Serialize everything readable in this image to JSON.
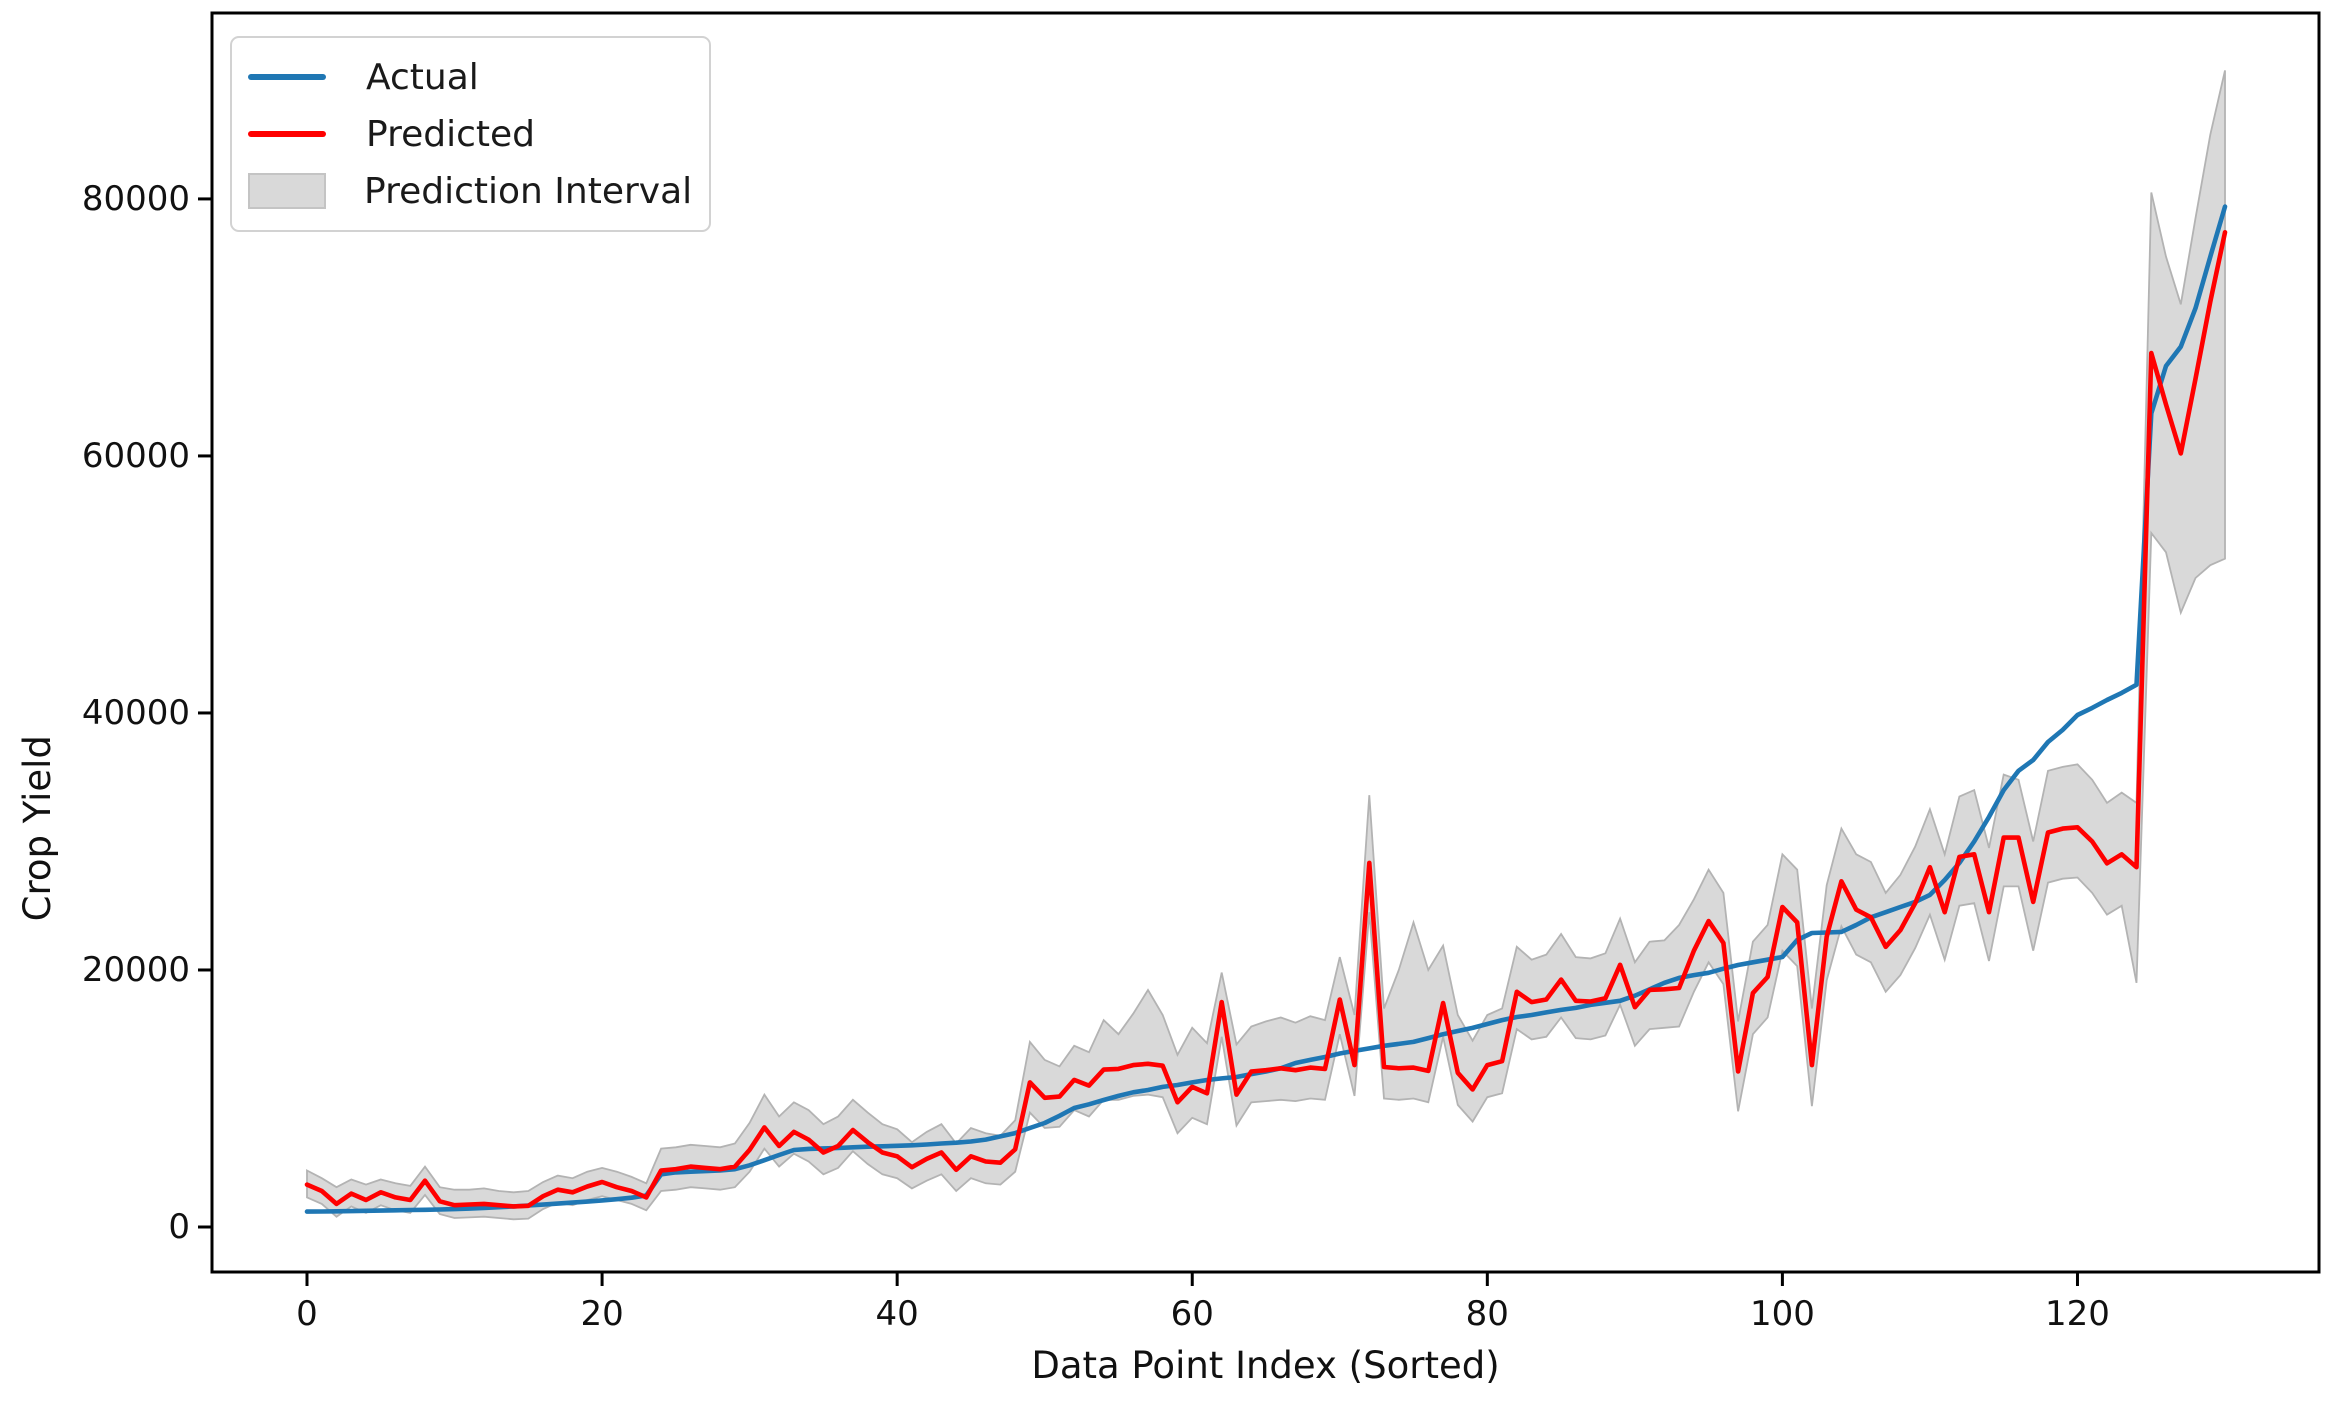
{
  "figure": {
    "xlabel": "Data Point Index (Sorted)",
    "ylabel": "Crop Yield",
    "legend": [
      {
        "label": "Actual",
        "type": "line",
        "color": "#1f77b4"
      },
      {
        "label": "Predicted",
        "type": "line",
        "color": "#ff0000"
      },
      {
        "label": "Prediction Interval",
        "type": "patch",
        "color": "#d9d9d9"
      }
    ]
  },
  "chart_data": {
    "type": "line",
    "title": "",
    "xlabel": "Data Point Index (Sorted)",
    "ylabel": "Crop Yield",
    "x_ticks": [
      0,
      20,
      40,
      60,
      80,
      100,
      120
    ],
    "y_ticks": [
      0,
      20000,
      40000,
      60000,
      80000
    ],
    "xlim": [
      -6.4,
      136.4
    ],
    "ylim": [
      -3500,
      94500
    ],
    "grid": false,
    "legend_position": "upper left",
    "x_description": "data point index 0..130, sorted by actual value",
    "series": [
      {
        "name": "Actual",
        "color": "#1f77b4",
        "values": [
          1200,
          1210,
          1220,
          1240,
          1260,
          1280,
          1300,
          1320,
          1340,
          1360,
          1390,
          1430,
          1480,
          1540,
          1600,
          1670,
          1740,
          1820,
          1900,
          1980,
          2070,
          2160,
          2280,
          2450,
          4100,
          4250,
          4300,
          4350,
          4400,
          4500,
          4800,
          5200,
          5600,
          5990,
          6080,
          6120,
          6150,
          6200,
          6250,
          6280,
          6320,
          6360,
          6420,
          6500,
          6560,
          6650,
          6800,
          7050,
          7310,
          7700,
          8090,
          8650,
          9260,
          9550,
          9880,
          10200,
          10480,
          10660,
          10900,
          11050,
          11250,
          11440,
          11560,
          11670,
          11900,
          12100,
          12350,
          12760,
          13000,
          13230,
          13500,
          13700,
          13900,
          14100,
          14250,
          14400,
          14700,
          15000,
          15250,
          15490,
          15800,
          16100,
          16340,
          16500,
          16700,
          16890,
          17050,
          17280,
          17450,
          17600,
          18000,
          18500,
          19000,
          19380,
          19600,
          19780,
          20100,
          20390,
          20600,
          20800,
          21010,
          22330,
          22880,
          22920,
          22960,
          23500,
          24100,
          24500,
          24900,
          25300,
          25840,
          27000,
          28330,
          30000,
          31910,
          34000,
          35500,
          36340,
          37740,
          38680,
          39840,
          40390,
          41010,
          41560,
          42200,
          63300,
          67000,
          68500,
          71500,
          75500,
          79400
        ]
      },
      {
        "name": "Predicted",
        "color": "#ff0000",
        "values": [
          3300,
          2800,
          1800,
          2600,
          2100,
          2700,
          2300,
          2100,
          3600,
          2000,
          1700,
          1750,
          1800,
          1700,
          1600,
          1650,
          2400,
          2900,
          2700,
          3150,
          3500,
          3100,
          2800,
          2300,
          4400,
          4500,
          4700,
          4600,
          4500,
          4700,
          6000,
          7750,
          6300,
          7400,
          6800,
          5800,
          6300,
          7550,
          6600,
          5800,
          5500,
          4650,
          5300,
          5800,
          4450,
          5500,
          5100,
          5000,
          6050,
          11250,
          10050,
          10150,
          11450,
          11000,
          12250,
          12300,
          12600,
          12700,
          12550,
          9700,
          10900,
          10400,
          17500,
          10300,
          12100,
          12200,
          12350,
          12200,
          12400,
          12300,
          17700,
          12600,
          28330,
          12450,
          12350,
          12400,
          12150,
          17430,
          12000,
          10700,
          12600,
          12900,
          18300,
          17500,
          17700,
          19250,
          17600,
          17550,
          17800,
          20400,
          17100,
          18450,
          18500,
          18600,
          21500,
          23800,
          22100,
          12100,
          18200,
          19450,
          24900,
          23700,
          12600,
          22600,
          26900,
          24700,
          24100,
          21800,
          23100,
          25200,
          28000,
          24500,
          28800,
          29000,
          24500,
          30300,
          30300,
          25300,
          30700,
          31000,
          31100,
          30000,
          28300,
          29000,
          28000,
          68000,
          64000,
          60200,
          66000,
          72000,
          77400
        ]
      },
      {
        "name": "Prediction Interval",
        "type": "band",
        "color": "#d9d9d9",
        "edge_color": "#b3b3b3",
        "upper": [
          4400,
          3800,
          3100,
          3700,
          3300,
          3700,
          3400,
          3200,
          4700,
          3100,
          2900,
          2900,
          3000,
          2800,
          2700,
          2800,
          3500,
          4000,
          3800,
          4300,
          4600,
          4300,
          3900,
          3400,
          6100,
          6200,
          6400,
          6300,
          6200,
          6500,
          8100,
          10300,
          8600,
          9700,
          9100,
          8000,
          8600,
          9900,
          8900,
          8000,
          7600,
          6600,
          7400,
          8000,
          6500,
          7700,
          7300,
          7100,
          8300,
          14400,
          13000,
          12500,
          14100,
          13600,
          16100,
          15000,
          16600,
          18440,
          16500,
          13400,
          15500,
          14300,
          19800,
          14200,
          15600,
          16000,
          16300,
          15900,
          16400,
          16100,
          21000,
          16500,
          33600,
          17000,
          20000,
          23700,
          20000,
          21900,
          16500,
          14500,
          16500,
          17000,
          21800,
          20800,
          21200,
          22800,
          21000,
          20900,
          21300,
          24000,
          20600,
          22200,
          22300,
          23500,
          25500,
          27800,
          26000,
          16000,
          22200,
          23500,
          29000,
          27800,
          17000,
          26600,
          31000,
          29000,
          28400,
          26000,
          27400,
          29600,
          32500,
          29000,
          33500,
          34000,
          29500,
          35200,
          34800,
          30000,
          35500,
          35800,
          36000,
          34800,
          33000,
          33800,
          33000,
          80500,
          75500,
          71800,
          78500,
          85000,
          90000
        ],
        "lower": [
          2300,
          1800,
          800,
          1600,
          1100,
          1700,
          1300,
          1100,
          2500,
          1000,
          700,
          750,
          800,
          700,
          600,
          650,
          1400,
          1900,
          1700,
          2100,
          2400,
          2100,
          1800,
          1300,
          2800,
          2900,
          3100,
          3000,
          2900,
          3100,
          4300,
          6100,
          4700,
          5700,
          5100,
          4100,
          4600,
          5900,
          4900,
          4100,
          3800,
          3000,
          3600,
          4100,
          2800,
          3800,
          3400,
          3300,
          4300,
          8900,
          7700,
          7800,
          9100,
          8600,
          9900,
          9900,
          10200,
          10300,
          10100,
          7300,
          8500,
          8000,
          14800,
          7900,
          9700,
          9800,
          9900,
          9800,
          10000,
          9900,
          15000,
          10200,
          24500,
          10000,
          9900,
          10000,
          9700,
          14800,
          9500,
          8200,
          10100,
          10400,
          15400,
          14600,
          14800,
          16300,
          14700,
          14600,
          14900,
          17300,
          14100,
          15400,
          15500,
          15600,
          18300,
          20600,
          18900,
          9000,
          15000,
          16300,
          21500,
          20300,
          9400,
          19200,
          23400,
          21200,
          20600,
          18300,
          19600,
          21700,
          24300,
          20800,
          25000,
          25200,
          20700,
          26500,
          26500,
          21500,
          26800,
          27100,
          27200,
          26000,
          24300,
          25000,
          19000,
          54000,
          52500,
          47800,
          50500,
          51500,
          52000
        ]
      }
    ]
  }
}
